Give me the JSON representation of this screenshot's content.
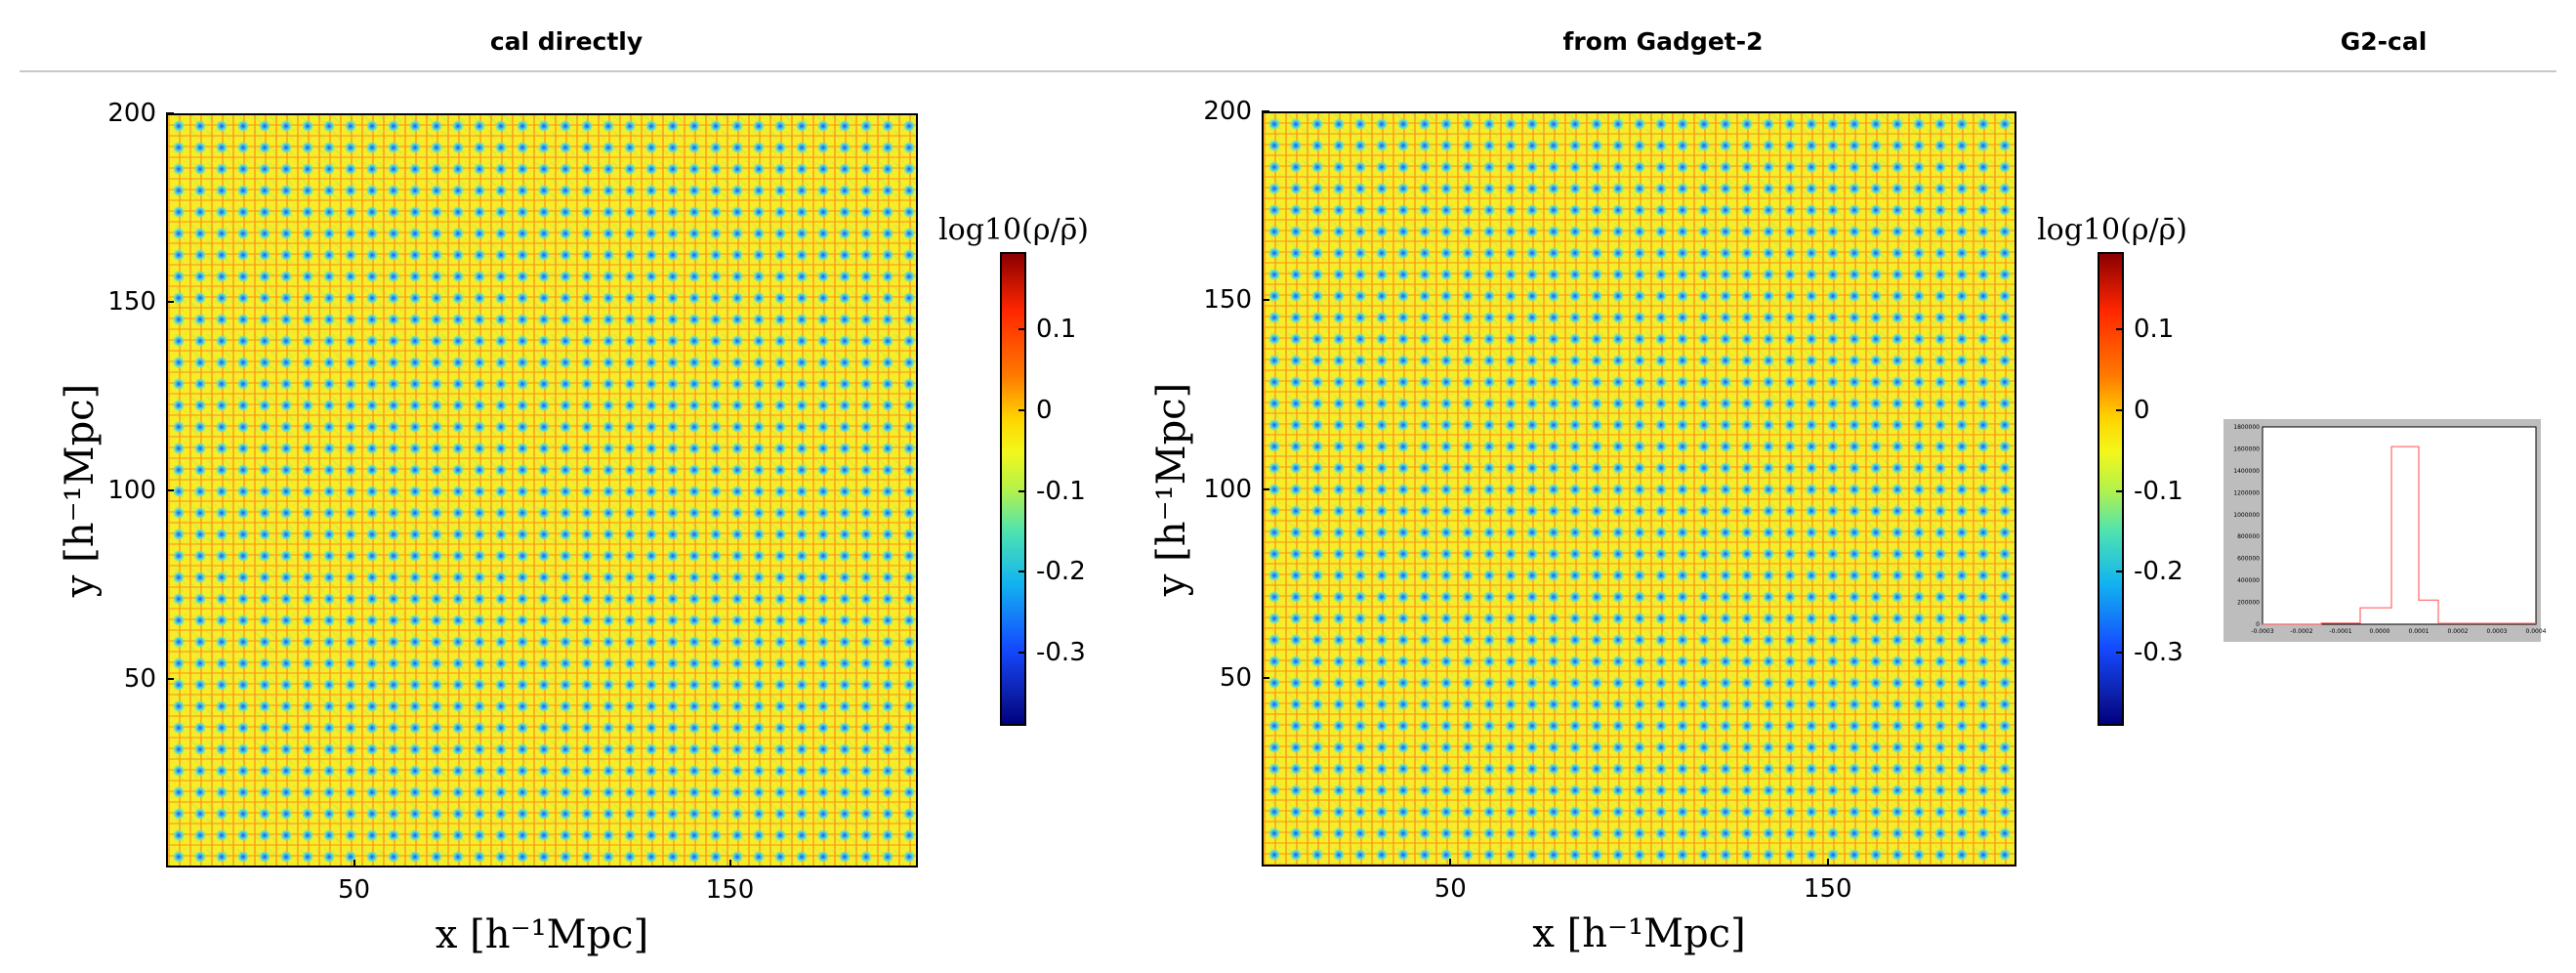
{
  "headers": {
    "left": "cal directly",
    "middle": "from Gadget-2",
    "right": "G2-cal"
  },
  "colorbar": {
    "title": "log10(ρ/ρ̄)",
    "ticks": [
      {
        "value": 0.1,
        "label": "0.1"
      },
      {
        "value": 0.0,
        "label": "0"
      },
      {
        "value": -0.1,
        "label": "-0.1"
      },
      {
        "value": -0.2,
        "label": "-0.2"
      },
      {
        "value": -0.3,
        "label": "-0.3"
      }
    ],
    "range": [
      -0.39,
      0.195
    ],
    "colormap": "jet"
  },
  "chart_data": [
    {
      "type": "heatmap",
      "panel": "cal directly",
      "xlabel": "x [h⁻¹Mpc]",
      "ylabel": "y [h⁻¹Mpc]",
      "xlim": [
        0,
        200
      ],
      "ylim": [
        0,
        200
      ],
      "xticks": [
        {
          "value": 50,
          "label": "50"
        },
        {
          "value": 150,
          "label": "150"
        }
      ],
      "yticks": [
        {
          "value": 200,
          "label": "200"
        },
        {
          "value": 150,
          "label": "150"
        },
        {
          "value": 100,
          "label": "100"
        },
        {
          "value": 50,
          "label": "50"
        }
      ],
      "value_range": [
        -0.39,
        0.195
      ],
      "dominant_value": 0.0
    },
    {
      "type": "heatmap",
      "panel": "from Gadget-2",
      "xlabel": "x [h⁻¹Mpc]",
      "ylabel": "y [h⁻¹Mpc]",
      "xlim": [
        0,
        200
      ],
      "ylim": [
        0,
        200
      ],
      "xticks": [
        {
          "value": 50,
          "label": "50"
        },
        {
          "value": 150,
          "label": "150"
        }
      ],
      "yticks": [
        {
          "value": 200,
          "label": "200"
        },
        {
          "value": 150,
          "label": "150"
        },
        {
          "value": 100,
          "label": "100"
        },
        {
          "value": 50,
          "label": "50"
        }
      ],
      "value_range": [
        -0.39,
        0.195
      ],
      "dominant_value": 0.0
    },
    {
      "type": "line",
      "panel": "G2-cal",
      "xlim": [
        -0.0003,
        0.0004
      ],
      "ylim": [
        0,
        1800000
      ],
      "yticks": [
        0,
        200000,
        400000,
        600000,
        800000,
        1000000,
        1200000,
        1400000,
        1600000,
        1800000
      ],
      "ytick_labels": [
        "0",
        "200000",
        "400000",
        "600000",
        "800000",
        "1000000",
        "1200000",
        "1400000",
        "1600000",
        "1800000"
      ],
      "xticks": [
        -0.0003,
        -0.0002,
        -0.0001,
        0.0,
        0.0001,
        0.0002,
        0.0003,
        0.0004
      ],
      "xtick_labels": [
        "-0.0003",
        "-0.0002",
        "-0.0001",
        "0.0000",
        "0.0001",
        "0.0002",
        "0.0003",
        "0.0004"
      ],
      "series": [
        {
          "color": "#ff6666",
          "step_x": [
            -0.0003,
            -0.00015,
            -0.00015,
            -5e-05,
            -5e-05,
            3e-05,
            3e-05,
            0.0001,
            0.0001,
            0.00015,
            0.00015,
            0.0004
          ],
          "step_y": [
            0,
            0,
            10000,
            10000,
            150000,
            150000,
            1620000,
            1620000,
            220000,
            220000,
            8000,
            8000
          ]
        }
      ]
    }
  ]
}
